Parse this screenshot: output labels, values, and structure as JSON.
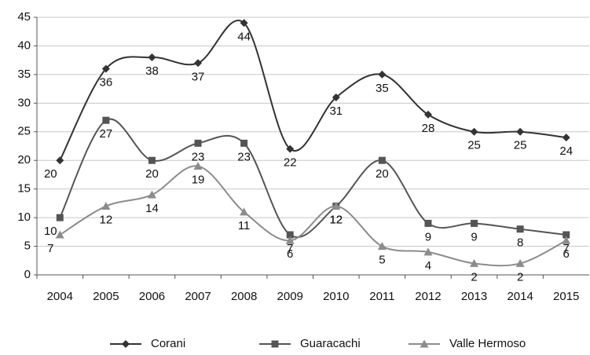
{
  "chart_data": {
    "type": "line",
    "categories": [
      "2004",
      "2005",
      "2006",
      "2007",
      "2008",
      "2009",
      "2010",
      "2011",
      "2012",
      "2013",
      "2014",
      "2015"
    ],
    "series": [
      {
        "name": "Corani",
        "color": "#333333",
        "marker": "diamond",
        "values": [
          20,
          36,
          38,
          37,
          44,
          22,
          31,
          35,
          28,
          25,
          25,
          24
        ]
      },
      {
        "name": "Guaracachi",
        "color": "#555555",
        "marker": "square",
        "values": [
          10,
          27,
          20,
          23,
          23,
          7,
          12,
          20,
          9,
          9,
          8,
          7
        ]
      },
      {
        "name": "Valle Hermoso",
        "color": "#8c8c8c",
        "marker": "triangle",
        "values": [
          7,
          12,
          14,
          19,
          11,
          6,
          12,
          5,
          4,
          2,
          2,
          6
        ]
      }
    ],
    "ylim": [
      0,
      45
    ],
    "yticks": [
      0,
      5,
      10,
      15,
      20,
      25,
      30,
      35,
      40,
      45
    ],
    "grid": true,
    "legend": "bottom"
  }
}
